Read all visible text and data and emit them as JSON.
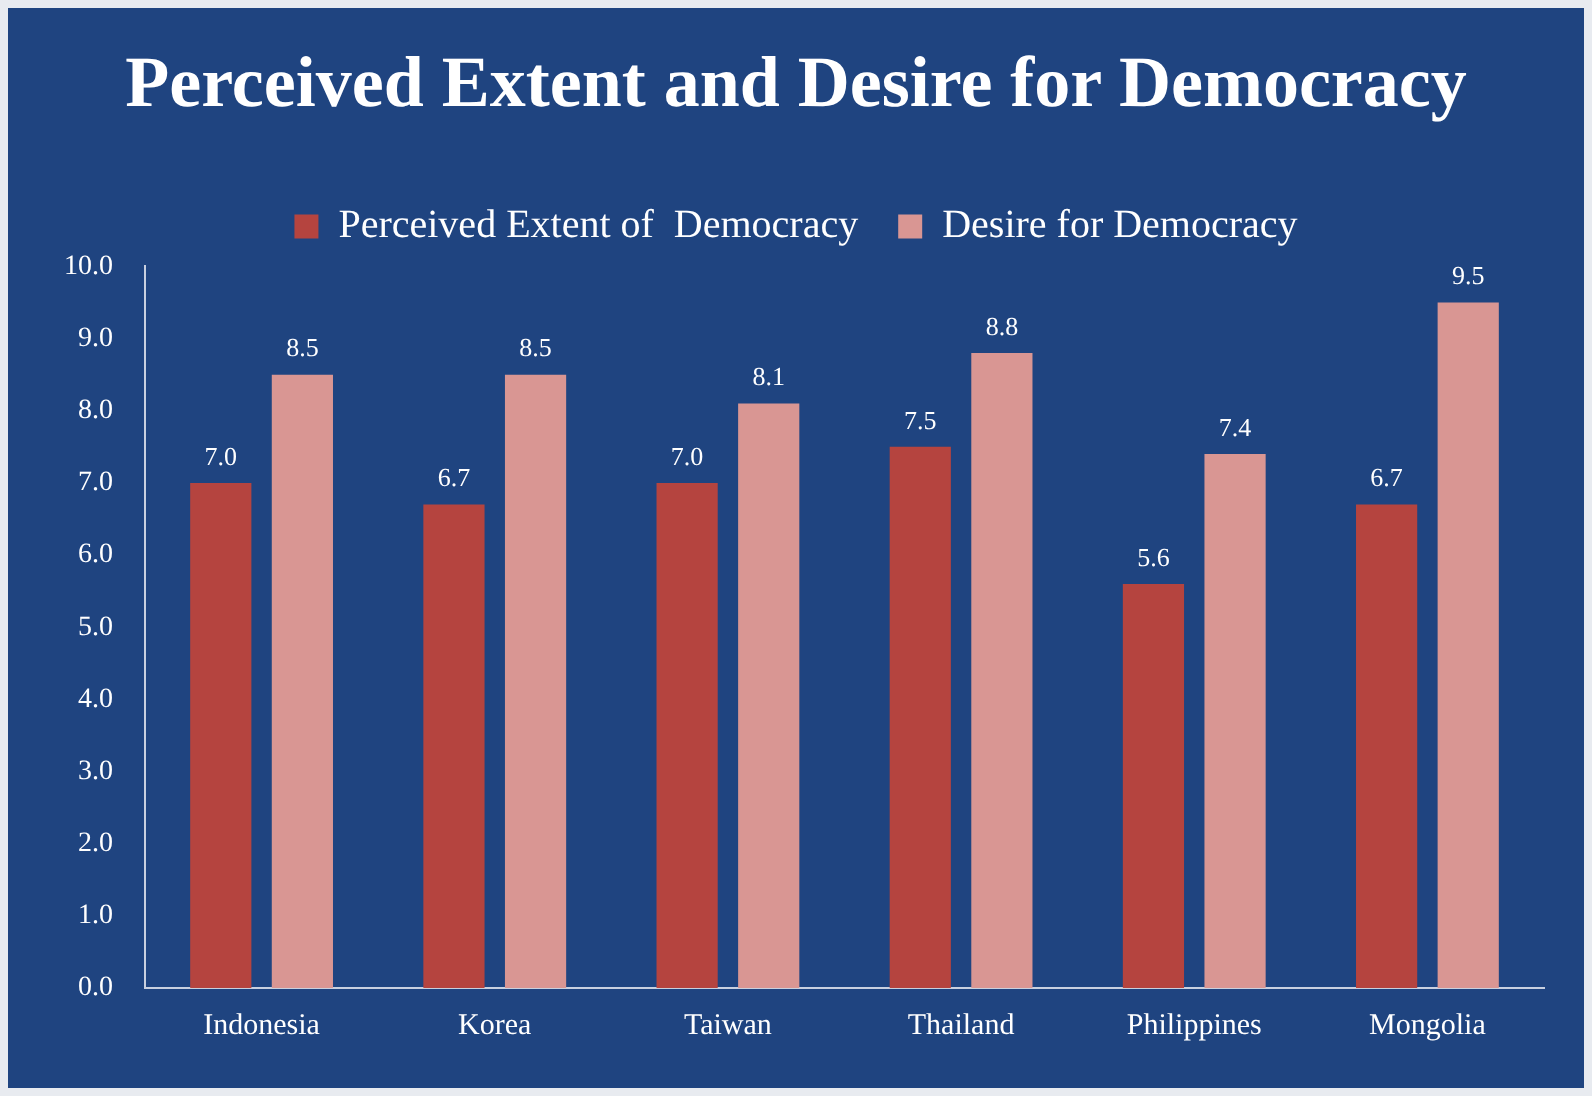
{
  "chart_data": {
    "type": "bar",
    "title": "Perceived Extent and Desire for Democracy",
    "categories": [
      "Indonesia",
      "Korea",
      "Taiwan",
      "Thailand",
      "Philippines",
      "Mongolia"
    ],
    "series": [
      {
        "name": "Perceived Extent of  Democracy",
        "color": "#b5443f",
        "values": [
          7.0,
          6.7,
          7.0,
          7.5,
          5.6,
          6.7
        ],
        "value_labels": [
          "7.0",
          "6.7",
          "7.0",
          "7.5",
          "5.6",
          "6.7"
        ]
      },
      {
        "name": "Desire for Democracy",
        "color": "#d99693",
        "values": [
          8.5,
          8.5,
          8.1,
          8.8,
          7.4,
          9.5
        ],
        "value_labels": [
          "8.5",
          "8.5",
          "8.1",
          "8.8",
          "7.4",
          "9.5"
        ]
      }
    ],
    "ylim": [
      0,
      10
    ],
    "yticks": [
      {
        "value": 0,
        "label": "0.0"
      },
      {
        "value": 1,
        "label": "1.0"
      },
      {
        "value": 2,
        "label": "2.0"
      },
      {
        "value": 3,
        "label": "3.0"
      },
      {
        "value": 4,
        "label": "4.0"
      },
      {
        "value": 5,
        "label": "5.0"
      },
      {
        "value": 6,
        "label": "6.0"
      },
      {
        "value": 7,
        "label": "7.0"
      },
      {
        "value": 8,
        "label": "8.0"
      },
      {
        "value": 9,
        "label": "9.0"
      },
      {
        "value": 10,
        "label": "10.0"
      }
    ],
    "grid": false,
    "legend": "top"
  }
}
